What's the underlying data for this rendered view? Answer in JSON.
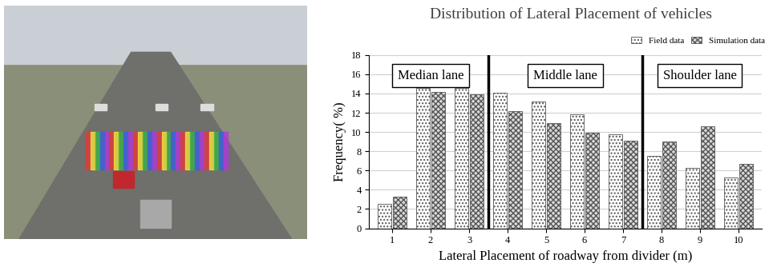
{
  "chart_data": {
    "type": "bar",
    "title": "Distribution of Lateral Placement of vehicles",
    "x_label": "Lateral Placement of roadway from divider (m)",
    "y_label": "Frequency( %)",
    "categories": [
      "1",
      "2",
      "3",
      "4",
      "5",
      "6",
      "7",
      "8",
      "9",
      "10"
    ],
    "series": [
      {
        "name": "Field data",
        "color": "#ffffff",
        "values": [
          2.5,
          14.6,
          14.6,
          14.1,
          13.2,
          11.8,
          9.8,
          7.5,
          6.3,
          5.3
        ]
      },
      {
        "name": "Simulation data",
        "color": "#d9d9d9",
        "values": [
          3.3,
          14.2,
          13.9,
          12.2,
          10.9,
          9.9,
          9.1,
          9.0,
          10.6,
          6.7
        ]
      }
    ],
    "lanes": [
      {
        "label": "Median lane",
        "from": "1",
        "to": "3"
      },
      {
        "label": "Middle lane",
        "from": "4",
        "to": "7"
      },
      {
        "label": "Shoulder lane",
        "from": "8",
        "to": "10"
      }
    ],
    "ylim": [
      0,
      18
    ],
    "yticks": [
      0,
      2,
      4,
      6,
      8,
      10,
      12,
      14,
      16,
      18
    ],
    "grid": true,
    "legend": "upper right"
  }
}
